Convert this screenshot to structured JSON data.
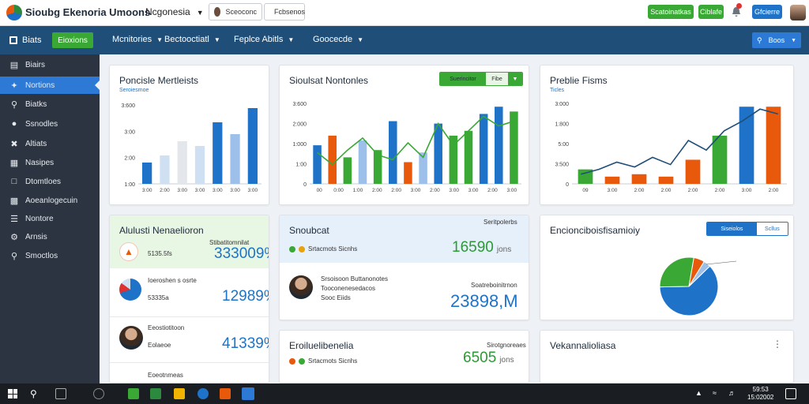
{
  "app": {
    "title": "Sioubg Ekenoria Umoons"
  },
  "header": {
    "region": "Ncgonesia",
    "pill_one": "Sceoconc",
    "pill_two": "Fcbsenos",
    "btn_one": "Scatoinatkas",
    "btn_two": "Ciblafe",
    "btn_three": "Gfcierre"
  },
  "nav": {
    "home_label": "Biats",
    "active_label": "Eioxions",
    "items": [
      "Mcnitories",
      "Bectooctiatl",
      "Feplce Abitls",
      "Goocecde"
    ],
    "search_label": "Boos"
  },
  "sidebar": {
    "items": [
      {
        "label": "Biairs",
        "icon": "chart-icon"
      },
      {
        "label": "Nortions",
        "icon": "users-icon"
      },
      {
        "label": "Biatks",
        "icon": "search-icon"
      },
      {
        "label": "Ssnodles",
        "icon": "user-icon"
      },
      {
        "label": "Altiats",
        "icon": "tools-icon"
      },
      {
        "label": "Nasipes",
        "icon": "document-icon"
      },
      {
        "label": "Dtomtloes",
        "icon": "grid-icon"
      },
      {
        "label": "Aoeanlogecuin",
        "icon": "calendar-icon"
      },
      {
        "label": "Nontore",
        "icon": "list-icon"
      },
      {
        "label": "Arnsis",
        "icon": "settings-icon"
      },
      {
        "label": "Smoctlos",
        "icon": "search-icon"
      }
    ]
  },
  "cards": {
    "chart_one": {
      "title": "Poncisle Mertleists",
      "subtitle": "Seroiesmoe"
    },
    "chart_two": {
      "title": "Sioulsat Nontonles",
      "toggle": [
        "Suerincitor",
        "Fibe"
      ]
    },
    "chart_three": {
      "title": "Preblie Fisms",
      "subtitle": "Ticles"
    },
    "stats_one": {
      "title": "Alulusti Nenaelioron",
      "rows": [
        {
          "label": "Stibatitomnilat",
          "sub": "5135.5fs",
          "value": "333009%"
        },
        {
          "label": "Ioeroshen s osrte",
          "sub": "53335a",
          "value": "12989%"
        },
        {
          "label": "Eeostiotitoon",
          "sub": "Eolaeoe",
          "value": "41339%"
        },
        {
          "label": "Eoeotnmeas"
        }
      ]
    },
    "stats_two": {
      "title": "Snoubcat",
      "badge_top": "Seritpolerbs",
      "legend": "Srtacmots  Sicnhs",
      "value_one": "16590",
      "unit_one": "jons",
      "person_label": "Srsoisoon Buttanonotes",
      "person_sub": "Tooconenesedacos",
      "person_sub2": "Sooc Eiids",
      "meta": "Soatreboinitrnon",
      "value_two": "23898,M"
    },
    "stats_three": {
      "title": "Eroiluelibenelia",
      "badge_top": "Sirotgnoreaes",
      "legend": "Srtacmots  Sicnhs",
      "value": "6505",
      "unit": "jons"
    },
    "pie_card": {
      "title": "Encionciboisfisamioiy",
      "toggle": [
        "Siseiolos",
        "Scllus"
      ]
    },
    "bottom_card": {
      "title": "Vekannalioliasa"
    }
  },
  "taskbar": {
    "time": "59:53",
    "date": "15:02002"
  },
  "chart_data": [
    {
      "type": "bar",
      "title": "Poncisle Mertleists",
      "yticks": [
        "3:600",
        "3:00",
        "2:00",
        "1:00"
      ],
      "xticks": [
        "3:00",
        "2:00",
        "3:00",
        "3:00",
        "3:00",
        "3:00",
        "3:00"
      ],
      "values": [
        0.9,
        1.2,
        1.8,
        1.6,
        2.6,
        2.1,
        3.2
      ],
      "colors": [
        "#1e73c8",
        "#cfe0f3",
        "#e3e7ec",
        "#cfe0f3",
        "#1e73c8",
        "#9dc0ea",
        "#1e73c8"
      ],
      "ylim": [
        0,
        3.6
      ]
    },
    {
      "type": "bar",
      "title": "Sioulsat Nontonles",
      "yticks": [
        "3:600",
        "2:000",
        "1:000",
        "1:00",
        "0"
      ],
      "xticks": [
        "00",
        "0:00",
        "1:00",
        "2:00",
        "2:00",
        "3:00",
        "2:00",
        "3:00",
        "3:00",
        "2:00",
        "3:00"
      ],
      "values": [
        1.6,
        2.0,
        1.1,
        1.8,
        1.4,
        2.6,
        0.9,
        1.3,
        2.5,
        2.0,
        2.2,
        2.9,
        3.2,
        3.0
      ],
      "colors": [
        "#1e73c8",
        "#e8590c",
        "#3aa835",
        "#9dc0ea",
        "#3aa835",
        "#1e73c8",
        "#e8590c",
        "#9dc0ea",
        "#1e73c8",
        "#3aa835",
        "#3aa835",
        "#1e73c8",
        "#1e73c8",
        "#3aa835"
      ],
      "line": [
        1.3,
        0.8,
        1.4,
        1.9,
        1.2,
        1.0,
        1.7,
        1.1,
        2.5,
        1.6,
        2.2,
        2.8,
        2.4,
        2.6
      ],
      "ylim": [
        0,
        3.6
      ]
    },
    {
      "type": "bar",
      "title": "Preblie Fisms",
      "yticks": [
        "3:000",
        "1:800",
        "5:00",
        "3:500",
        "0"
      ],
      "xticks": [
        "09",
        "3:00",
        "2:00",
        "2:00",
        "2:00",
        "2:00",
        "3:00",
        "2:00"
      ],
      "values": [
        0.6,
        0.3,
        0.4,
        0.3,
        1.0,
        2.0,
        3.2,
        3.2
      ],
      "colors": [
        "#3aa835",
        "#e8590c",
        "#e8590c",
        "#e8590c",
        "#e8590c",
        "#3aa835",
        "#1e73c8",
        "#e8590c"
      ],
      "line": [
        0.4,
        0.6,
        0.9,
        0.7,
        1.1,
        0.8,
        1.8,
        1.4,
        2.2,
        2.6,
        3.1,
        2.9
      ],
      "ylim": [
        0,
        3.6
      ]
    },
    {
      "type": "pie",
      "values": [
        62,
        28,
        6,
        4
      ],
      "colors": [
        "#1e73c8",
        "#3aa835",
        "#e8590c",
        "#9dc0ea"
      ]
    }
  ]
}
